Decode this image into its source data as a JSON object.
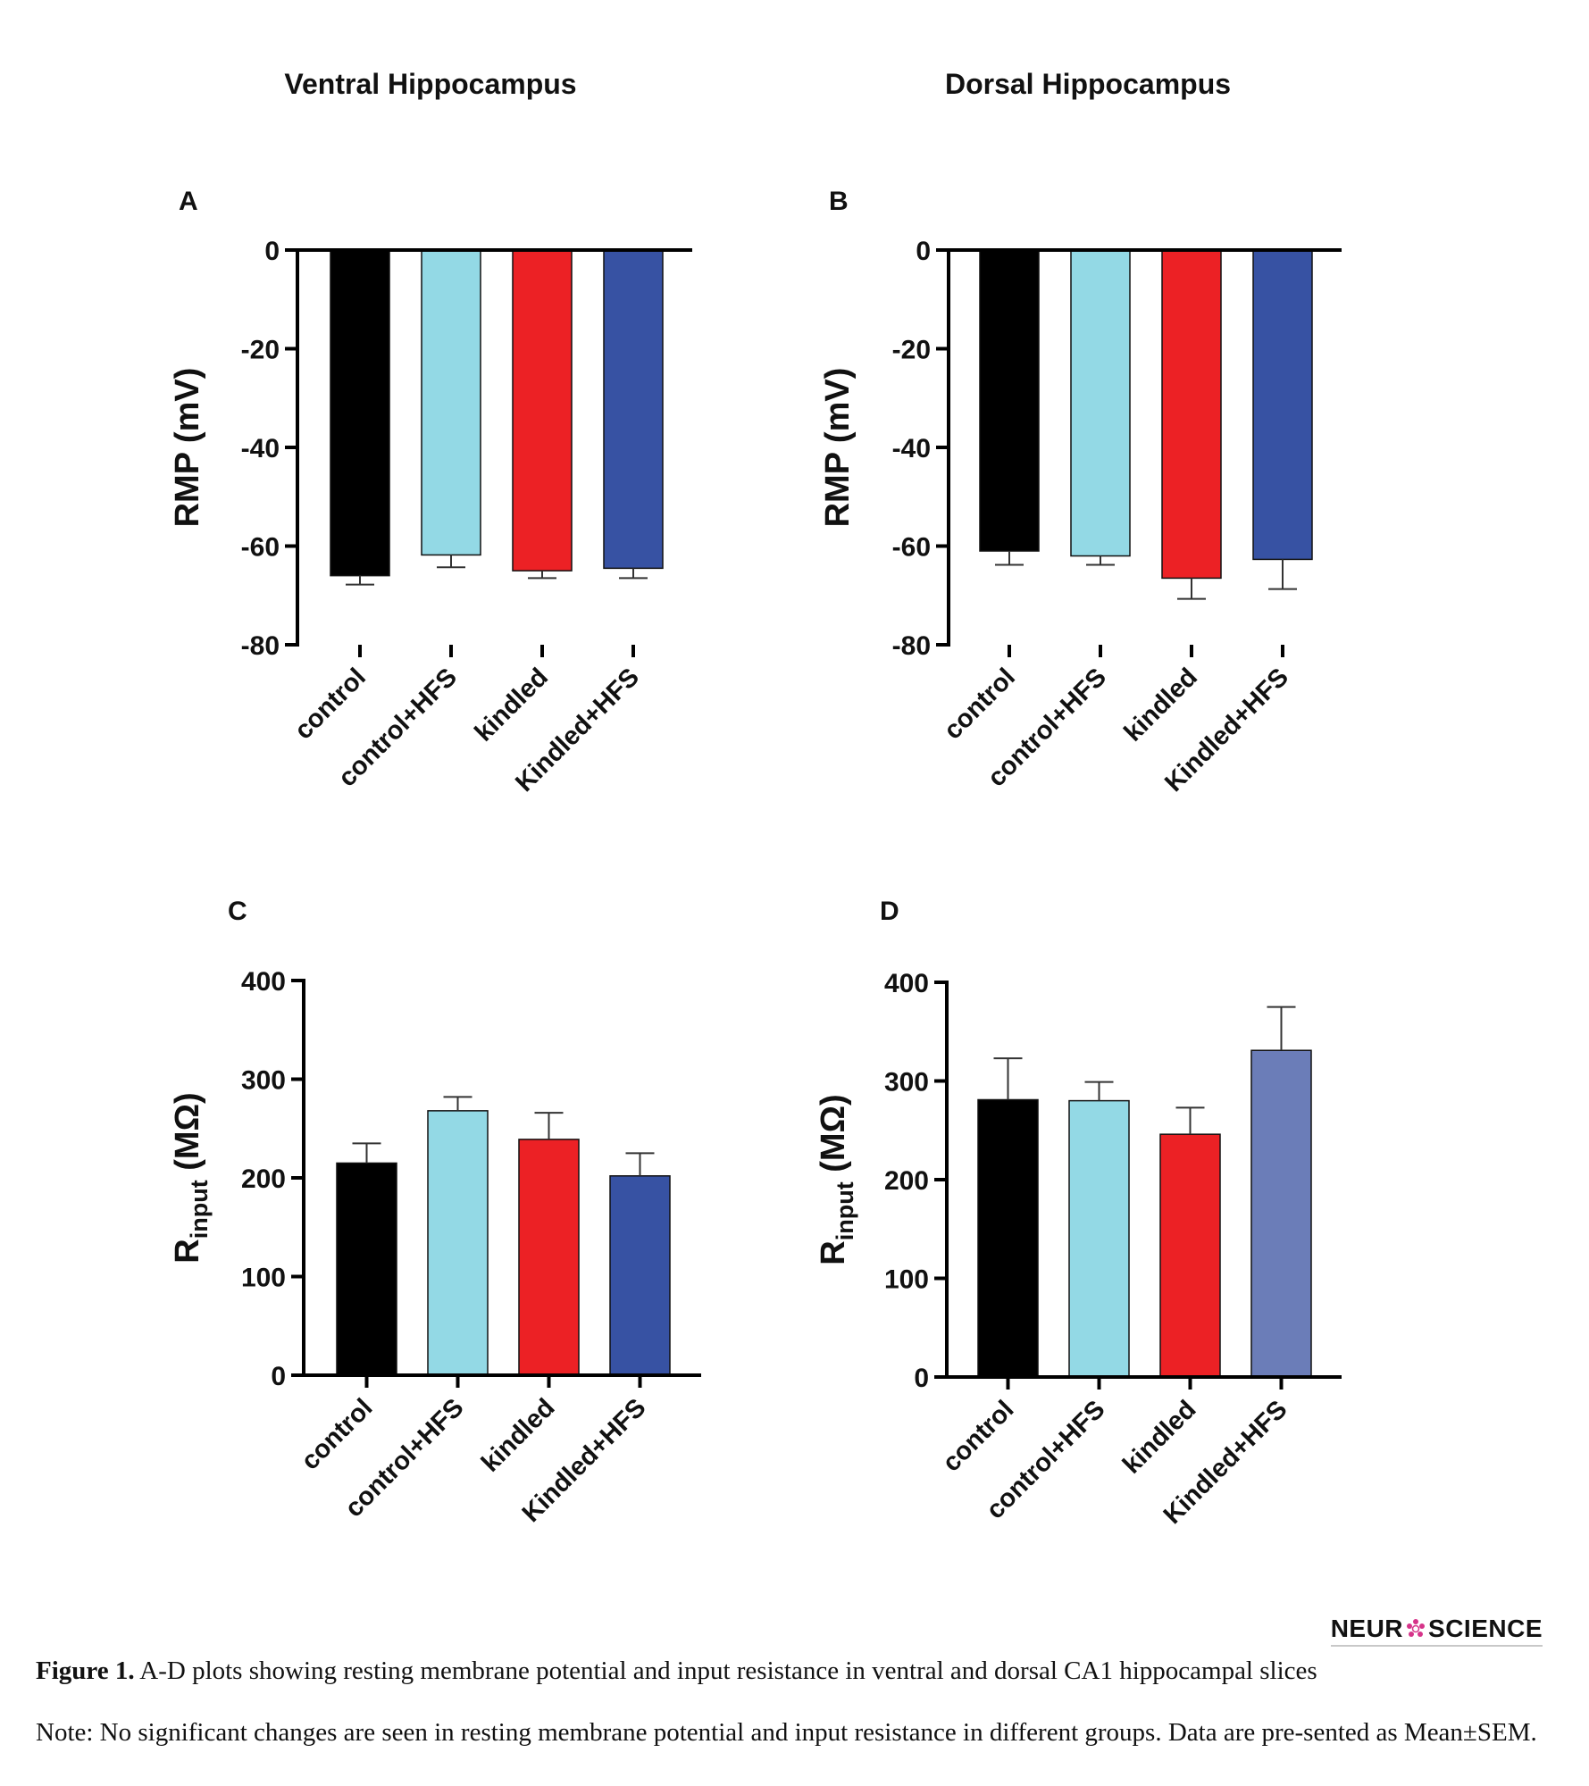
{
  "headings": {
    "left": "Ventral Hippocampus",
    "right": "Dorsal Hippocampus"
  },
  "chart_data": [
    {
      "panel": "A",
      "type": "bar",
      "categories": [
        "control",
        "control+HFS",
        "kindled",
        "Kindled+HFS"
      ],
      "values": [
        -66,
        -61.8,
        -65,
        -64.5
      ],
      "errors": [
        1.8,
        2.5,
        1.5,
        2.0
      ],
      "colors": [
        "#000000",
        "#93d9e5",
        "#ec2125",
        "#3752a3"
      ],
      "ylabel": "RMP (mV)",
      "ylim": [
        -80,
        0
      ],
      "yticks": [
        0,
        -20,
        -40,
        -60,
        -80
      ],
      "ytick_labels": [
        "0",
        "-20",
        "-40",
        "-60",
        "-80"
      ]
    },
    {
      "panel": "B",
      "type": "bar",
      "categories": [
        "control",
        "control+HFS",
        "kindled",
        "Kindled+HFS"
      ],
      "values": [
        -61,
        -62,
        -66.5,
        -62.7
      ],
      "errors": [
        2.8,
        1.8,
        4.2,
        6.0
      ],
      "colors": [
        "#000000",
        "#93d9e5",
        "#ec2125",
        "#3752a3"
      ],
      "ylabel": "RMP (mV)",
      "ylim": [
        -80,
        0
      ],
      "yticks": [
        0,
        -20,
        -40,
        -60,
        -80
      ],
      "ytick_labels": [
        "0",
        "-20",
        "-40",
        "-60",
        "-80"
      ]
    },
    {
      "panel": "C",
      "type": "bar",
      "categories": [
        "control",
        "control+HFS",
        "kindled",
        "Kindled+HFS"
      ],
      "values": [
        215,
        268,
        239,
        202
      ],
      "errors": [
        20,
        14,
        27,
        23
      ],
      "colors": [
        "#000000",
        "#93d9e5",
        "#ec2125",
        "#3752a3"
      ],
      "ylabel": "Rinput (MΩ)",
      "ylabel_main": "R",
      "ylabel_sub": "input",
      "ylabel_unit": " (MΩ)",
      "ylim": [
        0,
        400
      ],
      "yticks": [
        0,
        100,
        200,
        300,
        400
      ],
      "ytick_labels": [
        "0",
        "100",
        "200",
        "300",
        "400"
      ]
    },
    {
      "panel": "D",
      "type": "bar",
      "categories": [
        "control",
        "control+HFS",
        "kindled",
        "Kindled+HFS"
      ],
      "values": [
        281,
        280,
        246,
        331
      ],
      "errors": [
        42,
        19,
        27,
        44
      ],
      "colors": [
        "#000000",
        "#93d9e5",
        "#ec2125",
        "#6b7db8"
      ],
      "ylabel": "Rinput (MΩ)",
      "ylabel_main": "R",
      "ylabel_sub": "input",
      "ylabel_unit": " (MΩ)",
      "ylim": [
        0,
        400
      ],
      "yticks": [
        0,
        100,
        200,
        300,
        400
      ],
      "ytick_labels": [
        "0",
        "100",
        "200",
        "300",
        "400"
      ]
    }
  ],
  "logo": {
    "text_before": "NEUR",
    "text_after": "SCIENCE",
    "mark_color": "#d6348a"
  },
  "caption": {
    "label": "Figure 1.",
    "title": " A-D plots showing resting membrane potential and input resistance in ventral and dorsal CA1 hippocampal slices",
    "note": "Note: No significant changes are seen in resting membrane potential and input resistance in different groups. Data are pre-sented as Mean±SEM."
  }
}
